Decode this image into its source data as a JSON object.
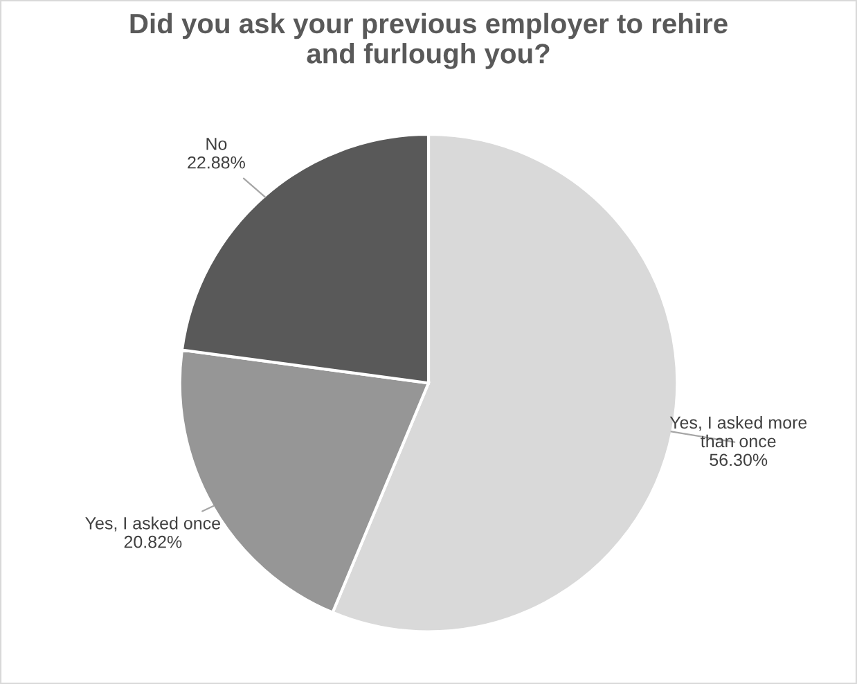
{
  "chart_data": {
    "type": "pie",
    "title": "Did you ask your previous employer to rehire\nand furlough you?",
    "categories": [
      "Yes, I asked more\nthan once",
      "Yes, I asked once",
      "No"
    ],
    "values": [
      56.3,
      20.82,
      22.88
    ],
    "value_labels": [
      "56.30%",
      "20.82%",
      "22.88%"
    ],
    "colors": [
      "#d9d9d9",
      "#969696",
      "#595959"
    ],
    "legend": false
  }
}
